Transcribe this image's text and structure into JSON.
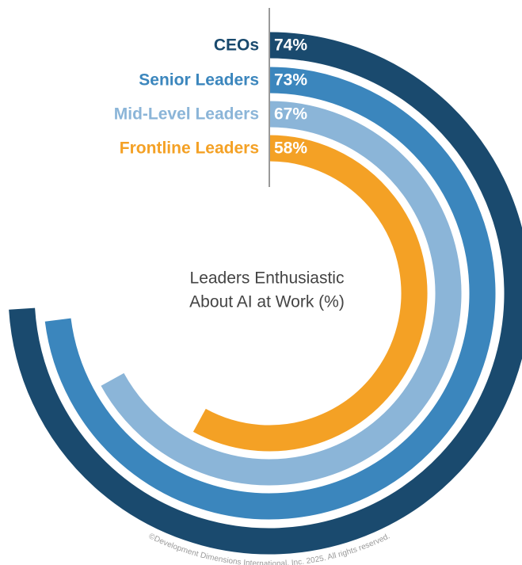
{
  "chart_data": {
    "type": "radial-bar",
    "title": "Leaders Enthusiastic",
    "subtitle": "About AI at Work (%)",
    "categories": [
      "CEOs",
      "Senior Leaders",
      "Mid-Level Leaders",
      "Frontline Leaders"
    ],
    "values": [
      74,
      73,
      67,
      58
    ],
    "value_labels": [
      "74%",
      "73%",
      "67%",
      "58%"
    ],
    "colors": [
      "#1a4a6e",
      "#3b86bd",
      "#8bb5d8",
      "#f4a125"
    ],
    "xlim": [
      0,
      100
    ],
    "footnote": "©Development Dimensions International, Inc. 2025. All rights reserved."
  }
}
